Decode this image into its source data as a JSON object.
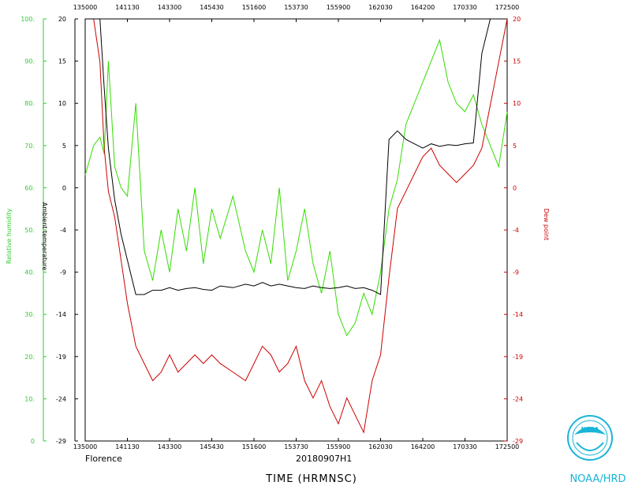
{
  "chart_data": {
    "type": "line",
    "storm_name": "Florence",
    "flight_id": "20180907H1",
    "xlabel": "TIME (HRMNSC)",
    "xtick_labels_bottom": [
      "135000",
      "141130",
      "143300",
      "145430",
      "151600",
      "153730",
      "155900",
      "162030",
      "164200",
      "170330",
      "172500"
    ],
    "xtick_labels_top": [
      "135000",
      "141130",
      "143300",
      "145430",
      "151600",
      "153730",
      "155900",
      "162030",
      "164200",
      "170330",
      "172500"
    ],
    "x_range": [
      0,
      10
    ],
    "left_axis": {
      "label": "Relative humidity",
      "color": "#33cc33",
      "range": [
        0,
        100
      ],
      "ticks": [
        "0",
        "10.",
        "20.",
        "30.",
        "40.",
        "50.",
        "60.",
        "70.",
        "80.",
        "90.",
        "100."
      ]
    },
    "temp_axis": {
      "label": "Ambient temperature",
      "color": "#000000",
      "range": [
        -29,
        20
      ],
      "ticks": [
        "-29",
        "-24",
        "-19",
        "-14",
        "-9",
        "-4",
        "0",
        "5",
        "10",
        "15",
        "20"
      ]
    },
    "right_axis": {
      "label": "Dew point",
      "color": "#cc0000",
      "range": [
        -29,
        20
      ],
      "ticks": [
        "-29",
        "-24",
        "-19",
        "-14",
        "-9",
        "-4",
        "0",
        "5",
        "10",
        "15",
        "20"
      ]
    },
    "series": [
      {
        "name": "Relative humidity",
        "color": "#33dd00",
        "axis": "left",
        "x": [
          0,
          0.2,
          0.35,
          0.45,
          0.55,
          0.7,
          0.85,
          1.0,
          1.2,
          1.4,
          1.6,
          1.8,
          2.0,
          2.2,
          2.4,
          2.6,
          2.8,
          3.0,
          3.2,
          3.5,
          3.8,
          4.0,
          4.2,
          4.4,
          4.6,
          4.8,
          5.0,
          5.2,
          5.4,
          5.6,
          5.8,
          6.0,
          6.2,
          6.4,
          6.6,
          6.8,
          7.0,
          7.2,
          7.4,
          7.6,
          7.8,
          8.0,
          8.2,
          8.4,
          8.6,
          8.8,
          9.0,
          9.2,
          9.4,
          9.6,
          9.8,
          10.0
        ],
        "values": [
          63,
          70,
          72,
          68,
          90,
          65,
          60,
          58,
          80,
          45,
          38,
          50,
          40,
          55,
          45,
          60,
          42,
          55,
          48,
          58,
          45,
          40,
          50,
          42,
          60,
          38,
          45,
          55,
          42,
          35,
          45,
          30,
          25,
          28,
          35,
          30,
          40,
          55,
          62,
          75,
          80,
          85,
          90,
          95,
          85,
          80,
          78,
          82,
          75,
          70,
          65,
          78
        ]
      },
      {
        "name": "Ambient temperature",
        "color": "#000000",
        "axis": "temp",
        "x": [
          0,
          0.2,
          0.35,
          0.45,
          0.55,
          0.7,
          0.85,
          1.0,
          1.2,
          1.4,
          1.6,
          1.8,
          2.0,
          2.2,
          2.4,
          2.6,
          2.8,
          3.0,
          3.2,
          3.5,
          3.8,
          4.0,
          4.2,
          4.4,
          4.6,
          4.8,
          5.0,
          5.2,
          5.4,
          5.6,
          5.8,
          6.0,
          6.2,
          6.4,
          6.6,
          6.8,
          7.0,
          7.2,
          7.4,
          7.6,
          7.8,
          8.0,
          8.2,
          8.4,
          8.6,
          8.8,
          9.0,
          9.2,
          9.4,
          9.6,
          9.8,
          10.0
        ],
        "values": [
          21,
          22,
          20,
          12,
          5,
          -1,
          -5,
          -8,
          -12,
          -12,
          -11.5,
          -11.5,
          -11.2,
          -11.5,
          -11.3,
          -11.2,
          -11.4,
          -11.5,
          -11,
          -11.2,
          -10.8,
          -11,
          -10.6,
          -11,
          -10.8,
          -11,
          -11.2,
          -11.3,
          -11,
          -11.2,
          -11.3,
          -11.2,
          -11,
          -11.3,
          -11.2,
          -11.5,
          -12,
          6,
          7,
          6,
          5.5,
          5,
          5.5,
          5.2,
          5.4,
          5.3,
          5.5,
          5.6,
          16,
          20,
          21,
          22
        ]
      },
      {
        "name": "Dew point",
        "color": "#cc0000",
        "axis": "right",
        "x": [
          0,
          0.2,
          0.35,
          0.45,
          0.55,
          0.7,
          0.85,
          1.0,
          1.2,
          1.4,
          1.6,
          1.8,
          2.0,
          2.2,
          2.4,
          2.6,
          2.8,
          3.0,
          3.2,
          3.5,
          3.8,
          4.0,
          4.2,
          4.4,
          4.6,
          4.8,
          5.0,
          5.2,
          5.4,
          5.6,
          5.8,
          6.0,
          6.2,
          6.4,
          6.6,
          6.8,
          7.0,
          7.2,
          7.4,
          7.6,
          7.8,
          8.0,
          8.2,
          8.4,
          8.6,
          8.8,
          9.0,
          9.2,
          9.4,
          9.6,
          9.8,
          10.0
        ],
        "values": [
          21,
          22,
          15,
          5,
          0,
          -3,
          -8,
          -13,
          -18,
          -20,
          -22,
          -21,
          -19,
          -21,
          -20,
          -19,
          -20,
          -19,
          -20,
          -21,
          -22,
          -20,
          -18,
          -19,
          -21,
          -20,
          -18,
          -22,
          -24,
          -22,
          -25,
          -27,
          -24,
          -26,
          -28,
          -22,
          -19,
          -10,
          -2,
          0,
          2,
          4,
          5,
          3,
          2,
          1,
          2,
          3,
          5,
          10,
          15,
          20
        ]
      }
    ],
    "grid": false
  },
  "branding": {
    "logo_text": "NOAA",
    "footer_text": "NOAA/HRD"
  }
}
